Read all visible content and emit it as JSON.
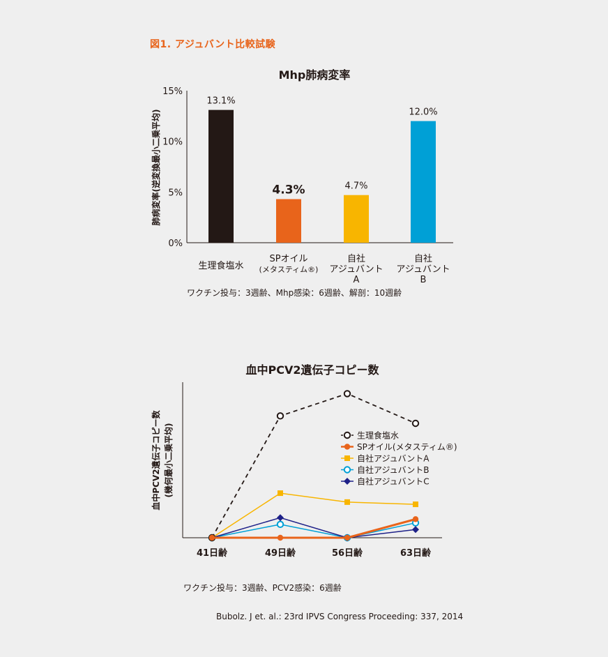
{
  "figure_title": "図1. アジュバント比較試験",
  "chart_data": [
    {
      "type": "bar",
      "title": "Mhp肺病変率",
      "ylabel": "肺病変率(逆変換最小二乗平均)",
      "ylim": [
        0,
        15
      ],
      "yticks": [
        "0%",
        "5%",
        "10%",
        "15%"
      ],
      "yticks_values": [
        0,
        5,
        10,
        15
      ],
      "categories": [
        [
          "生理食塩水"
        ],
        [
          "SPオイル",
          "(メタスティム®)"
        ],
        [
          "自社",
          "アジュバント",
          "A"
        ],
        [
          "自社",
          "アジュバント",
          "B"
        ]
      ],
      "values": [
        13.1,
        4.3,
        4.7,
        12.0
      ],
      "value_labels": [
        "13.1%",
        "4.3%",
        "4.7%",
        "12.0%"
      ],
      "colors": [
        "#231815",
        "#e8641b",
        "#f8b500",
        "#00a0d6"
      ],
      "highlight_index": 1,
      "note": "ワクチン投与：3週齢、Mhp感染：6週齢、解剖：10週齢"
    },
    {
      "type": "line",
      "title": "血中PCV2遺伝子コピー数",
      "ylabel": [
        "血中PCV2遺伝子コピー数",
        "(幾何最小二乗平均)"
      ],
      "x": [
        "41日齢",
        "49日齢",
        "56日齢",
        "63日齢"
      ],
      "ylim": [
        0,
        100
      ],
      "series": [
        {
          "name": "生理食塩水",
          "values": [
            0,
            82,
            97,
            77
          ],
          "color": "#231815",
          "marker": "circle-open",
          "dashed": true
        },
        {
          "name": "SPオイル(メタスティム®)",
          "values": [
            0,
            0,
            0,
            12.5
          ],
          "color": "#e8641b",
          "marker": "circle-filled",
          "dashed": false,
          "thick": true
        },
        {
          "name": "自社アジュバントA",
          "values": [
            0,
            30,
            24,
            22.5
          ],
          "color": "#f8b500",
          "marker": "square",
          "dashed": false
        },
        {
          "name": "自社アジュバントB",
          "values": [
            0,
            9,
            0,
            10
          ],
          "color": "#00a0d6",
          "marker": "circle-open",
          "dashed": false
        },
        {
          "name": "自社アジュバントC",
          "values": [
            0,
            13.5,
            0,
            5.5
          ],
          "color": "#1d2088",
          "marker": "diamond",
          "dashed": false
        }
      ],
      "note": "ワクチン投与：3週齢、PCV2感染：6週齢"
    }
  ],
  "citation": "Bubolz. J et. al.: 23rd IPVS Congress Proceeding: 337, 2014"
}
